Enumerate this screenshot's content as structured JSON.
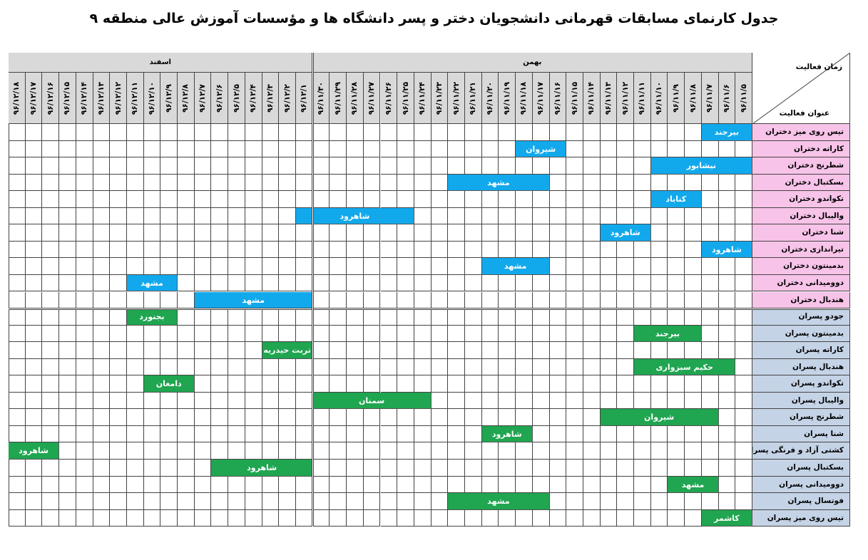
{
  "title": "جدول کارنمای مسابقات قهرمانی دانشجویان دختر و پسر دانشگاه ها و مؤسسات آموزش عالی منطقه ۹",
  "corner": {
    "top_label": "زمان فعالیت",
    "bottom_label": "عنوان فعالیت"
  },
  "months": [
    {
      "name": "بهمن",
      "span": 26
    },
    {
      "name": "اسفند",
      "span": 18
    }
  ],
  "dates": [
    "۹۶/۱۱/۵",
    "۹۶/۱۱/۶",
    "۹۶/۱۱/۷",
    "۹۶/۱۱/۸",
    "۹۶/۱۱/۹",
    "۹۶/۱۱/۱۰",
    "۹۶/۱۱/۱۱",
    "۹۶/۱۱/۱۲",
    "۹۶/۱۱/۱۳",
    "۹۶/۱۱/۱۴",
    "۹۶/۱۱/۱۵",
    "۹۶/۱۱/۱۶",
    "۹۶/۱۱/۱۷",
    "۹۶/۱۱/۱۸",
    "۹۶/۱۱/۱۹",
    "۹۶/۱۱/۲۰",
    "۹۶/۱۱/۲۱",
    "۹۶/۱۱/۲۲",
    "۹۶/۱۱/۲۳",
    "۹۶/۱۱/۲۴",
    "۹۶/۱۱/۲۵",
    "۹۶/۱۱/۲۶",
    "۹۶/۱۱/۲۷",
    "۹۶/۱۱/۲۸",
    "۹۶/۱۱/۲۹",
    "۹۶/۱۱/۳۰",
    "۹۶/۱۲/۱",
    "۹۶/۱۲/۲",
    "۹۶/۱۲/۳",
    "۹۶/۱۲/۴",
    "۹۶/۱۲/۵",
    "۹۶/۱۲/۶",
    "۹۶/۱۲/۷",
    "۹۶/۱۲/۸",
    "۹۶/۱۲/۹",
    "۹۶/۱۲/۱۰",
    "۹۶/۱۲/۱۱",
    "۹۶/۱۲/۱۲",
    "۹۶/۱۲/۱۳",
    "۹۶/۱۲/۱۴",
    "۹۶/۱۲/۱۵",
    "۹۶/۱۲/۱۶",
    "۹۶/۱۲/۱۷",
    "۹۶/۱۲/۱۸"
  ],
  "colors": {
    "girls_row": "#f7c3e8",
    "boys_row": "#c5d3e6",
    "girls_bar": "#12a9ec",
    "boys_bar": "#20a550"
  },
  "girls": [
    {
      "activity": "تیس روی میز دختران",
      "location": "بیرجند",
      "start_date": "۹۶/۱۱/۵",
      "end_date": "۹۶/۱۱/۷"
    },
    {
      "activity": "کاراته دختران",
      "location": "شیروان",
      "start_date": "۹۶/۱۱/۱۶",
      "end_date": "۹۶/۱۱/۱۸"
    },
    {
      "activity": "شطرنج دختران",
      "location": "نیشابور",
      "start_date": "۹۶/۱۱/۵",
      "end_date": "۹۶/۱۱/۱۰"
    },
    {
      "activity": "بسکتبال دختران",
      "location": "مشهد",
      "start_date": "۹۶/۱۱/۱۷",
      "end_date": "۹۶/۱۱/۲۲"
    },
    {
      "activity": "تکواندو دختران",
      "location": "کناباد",
      "start_date": "۹۶/۱۱/۸",
      "end_date": "۹۶/۱۱/۱۰"
    },
    {
      "activity": "والیبال دختران",
      "location": "شاهرود",
      "start_date": "۹۶/۱۱/۲۵",
      "end_date": "۹۶/۱۲/۱"
    },
    {
      "activity": "شنا دختران",
      "location": "شاهرود",
      "start_date": "۹۶/۱۱/۱۱",
      "end_date": "۹۶/۱۱/۱۳"
    },
    {
      "activity": "تیراندازی دختران",
      "location": "شاهرود",
      "start_date": "۹۶/۱۱/۵",
      "end_date": "۹۶/۱۱/۷"
    },
    {
      "activity": "بدمینتون دختران",
      "location": "مشهد",
      "start_date": "۹۶/۱۱/۱۷",
      "end_date": "۹۶/۱۱/۲۰"
    },
    {
      "activity": "دوومیدانی دختران",
      "location": "مشهد",
      "start_date": "۹۶/۱۲/۹",
      "end_date": "۹۶/۱۲/۱۱"
    },
    {
      "activity": "هندبال دختران",
      "location": "مشهد",
      "start_date": "۹۶/۱۲/۱",
      "end_date": "۹۶/۱۲/۷"
    }
  ],
  "boys": [
    {
      "activity": "جودو پسران",
      "location": "بجنورد",
      "start_date": "۹۶/۱۲/۹",
      "end_date": "۹۶/۱۲/۱۱"
    },
    {
      "activity": "بدمینتون پسران",
      "location": "بیرجند",
      "start_date": "۹۶/۱۱/۸",
      "end_date": "۹۶/۱۱/۱۱"
    },
    {
      "activity": "کاراته پسران",
      "location": "تربت حیدریه",
      "start_date": "۹۶/۱۲/۱",
      "end_date": "۹۶/۱۲/۳"
    },
    {
      "activity": "هندبال پسران",
      "location": "حکیم سبزواری",
      "start_date": "۹۶/۱۱/۶",
      "end_date": "۹۶/۱۱/۱۱"
    },
    {
      "activity": "تکواندو پسران",
      "location": "دامغان",
      "start_date": "۹۶/۱۲/۸",
      "end_date": "۹۶/۱۲/۱۰"
    },
    {
      "activity": "والیبال پسران",
      "location": "سمنان",
      "start_date": "۹۶/۱۱/۲۴",
      "end_date": "۹۶/۱۱/۳۰"
    },
    {
      "activity": "شطرنج پسران",
      "location": "شیروان",
      "start_date": "۹۶/۱۱/۷",
      "end_date": "۹۶/۱۱/۱۳"
    },
    {
      "activity": "شنا پسران",
      "location": "شاهرود",
      "start_date": "۹۶/۱۱/۱۸",
      "end_date": "۹۶/۱۱/۲۰"
    },
    {
      "activity": "کشتی آزاد و فرنگی پسران",
      "location": "شاهرود",
      "start_date": "۹۶/۱۲/۱۶",
      "end_date": "۹۶/۱۲/۱۸"
    },
    {
      "activity": "بسکتبال پسران",
      "location": "شاهرود",
      "start_date": "۹۶/۱۲/۱",
      "end_date": "۹۶/۱۲/۶"
    },
    {
      "activity": "دوومیدانی پسران",
      "location": "مشهد",
      "start_date": "۹۶/۱۱/۷",
      "end_date": "۹۶/۱۱/۹"
    },
    {
      "activity": "فوتسال پسران",
      "location": "مشهد",
      "start_date": "۹۶/۱۱/۱۷",
      "end_date": "۹۶/۱۱/۲۲"
    },
    {
      "activity": "تیس روی میز پسران",
      "location": "کاشمر",
      "start_date": "۹۶/۱۱/۵",
      "end_date": "۹۶/۱۱/۷"
    }
  ]
}
